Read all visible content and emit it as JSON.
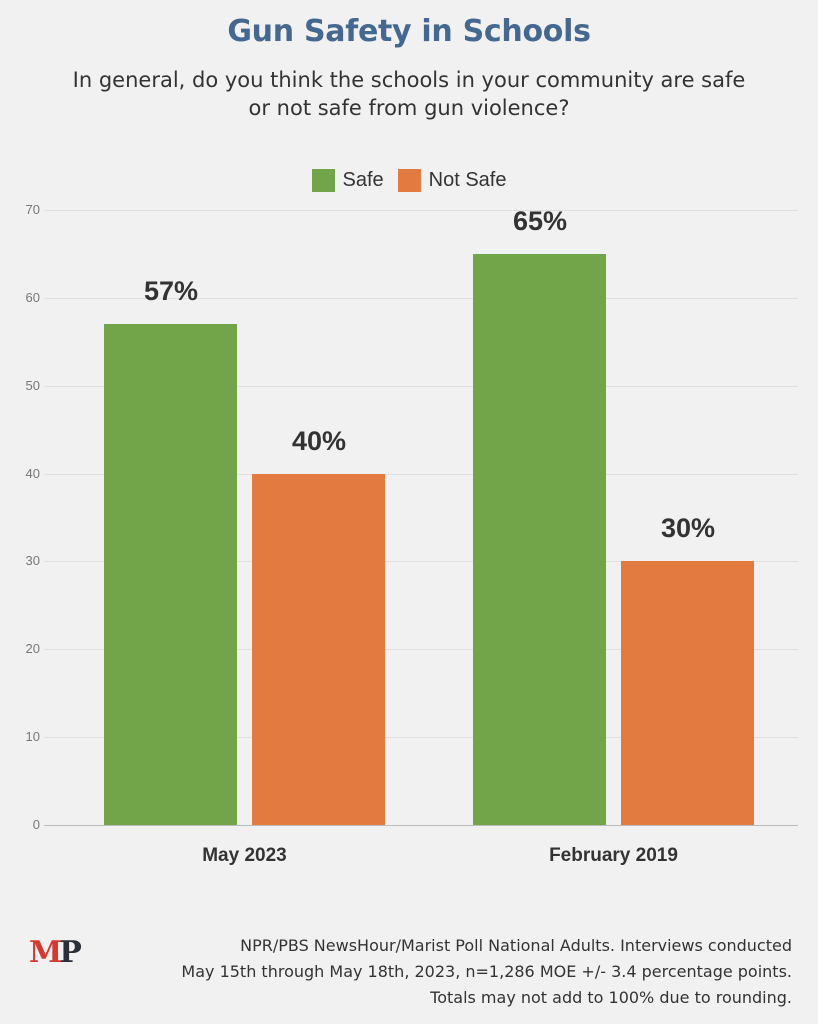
{
  "header": {
    "title": "Gun Safety in Schools",
    "subtitle": "In general, do you think the schools in your community are safe or not safe from gun violence?"
  },
  "legend": [
    {
      "label": "Safe",
      "color": "#72a44a"
    },
    {
      "label": "Not Safe",
      "color": "#e37b40"
    }
  ],
  "y_ticks": [
    "0",
    "10",
    "20",
    "30",
    "40",
    "50",
    "60",
    "70"
  ],
  "groups": [
    {
      "label": "May 2023",
      "safe_label": "57%",
      "not_safe_label": "40%"
    },
    {
      "label": "February 2019",
      "safe_label": "65%",
      "not_safe_label": "30%"
    }
  ],
  "footer": {
    "logo_m": "M",
    "logo_p": "P",
    "source_line1": "NPR/PBS NewsHour/Marist Poll National Adults. Interviews conducted",
    "source_line2": "May 15th through May 18th, 2023, n=1,286 MOE +/- 3.4 percentage points.",
    "source_line3": "Totals may not add to 100% due to rounding."
  },
  "chart_data": {
    "type": "bar",
    "title": "Gun Safety in Schools",
    "subtitle": "In general, do you think the schools in your community are safe or not safe from gun violence?",
    "categories": [
      "May 2023",
      "February 2019"
    ],
    "series": [
      {
        "name": "Safe",
        "values": [
          57,
          65
        ],
        "color": "#72a44a"
      },
      {
        "name": "Not Safe",
        "values": [
          40,
          30
        ],
        "color": "#e37b40"
      }
    ],
    "data_labels": [
      [
        "57%",
        "65%"
      ],
      [
        "40%",
        "30%"
      ]
    ],
    "xlabel": "",
    "ylabel": "",
    "ylim": [
      0,
      70
    ],
    "y_ticks": [
      0,
      10,
      20,
      30,
      40,
      50,
      60,
      70
    ],
    "grid": true,
    "legend_position": "top"
  }
}
